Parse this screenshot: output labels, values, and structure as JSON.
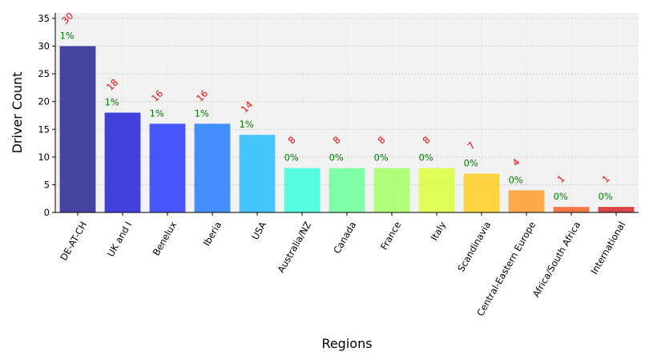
{
  "chart_data": {
    "type": "bar",
    "xlabel": "Regions",
    "ylabel": "Driver Count",
    "categories": [
      "DE-AT-CH",
      "UK and I",
      "Benelux",
      "Iberia",
      "USA",
      "Australia/NZ",
      "Canada",
      "France",
      "Italy",
      "Scandinavia",
      "Central-Eastern Europe",
      "Africa/South Africa",
      "International"
    ],
    "values": [
      30,
      18,
      16,
      16,
      14,
      8,
      8,
      8,
      8,
      7,
      4,
      1,
      1
    ],
    "count_labels": [
      "30",
      "18",
      "16",
      "16",
      "14",
      "8",
      "8",
      "8",
      "8",
      "7",
      "4",
      "1",
      "1"
    ],
    "percent_labels": [
      "1%",
      "1%",
      "1%",
      "1%",
      "1%",
      "0%",
      "0%",
      "0%",
      "0%",
      "0%",
      "0%",
      "0%",
      "0%"
    ],
    "colors": [
      "#1f1f8f",
      "#1a1ad6",
      "#2233ff",
      "#1f77ff",
      "#21bcff",
      "#33ffdd",
      "#66ff99",
      "#a1ff5e",
      "#d9ff33",
      "#ffcc1a",
      "#ff9a26",
      "#ff5a1f",
      "#d41f1f"
    ],
    "count_label_color": "#ff0000",
    "percent_label_color": "#008000",
    "ylim": [
      0,
      36
    ],
    "yticks": [
      "0",
      "5",
      "10",
      "15",
      "20",
      "25",
      "30",
      "35"
    ],
    "grid": true,
    "background": "#f2f2f2"
  }
}
